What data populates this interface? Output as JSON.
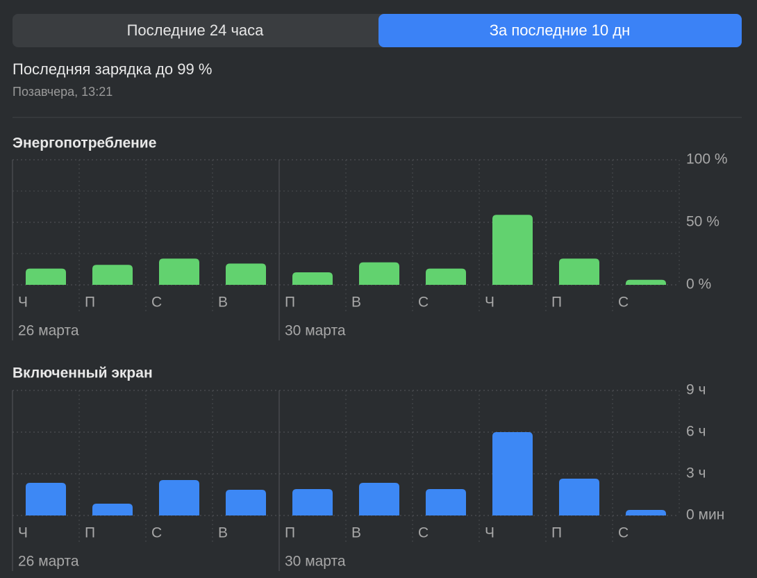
{
  "tabs": [
    "Последние 24 часа",
    "За последние 10 дн"
  ],
  "last_charge": {
    "title": "Последняя зарядка до 99 %",
    "time": "Позавчера, 13:21"
  },
  "chart_data": [
    {
      "type": "bar",
      "title": "Энергопотребление",
      "categories": [
        "Ч",
        "П",
        "С",
        "В",
        "П",
        "В",
        "С",
        "Ч",
        "П",
        "С"
      ],
      "week_labels": [
        "26 марта",
        null,
        null,
        null,
        "30 марта",
        null,
        null,
        null,
        null,
        null
      ],
      "values": [
        13,
        16,
        21,
        17,
        10,
        18,
        13,
        56,
        21,
        4
      ],
      "color": "#62d26f",
      "ylim": [
        0,
        100
      ],
      "yticks": [
        {
          "value": 0,
          "label": "0 %"
        },
        {
          "value": 50,
          "label": "50 %"
        },
        {
          "value": 100,
          "label": "100 %"
        }
      ],
      "minor_yticks": [
        25,
        75
      ],
      "grid": true
    },
    {
      "type": "bar",
      "title": "Включенный экран",
      "categories": [
        "Ч",
        "П",
        "С",
        "В",
        "П",
        "В",
        "С",
        "Ч",
        "П",
        "С"
      ],
      "week_labels": [
        "26 марта",
        null,
        null,
        null,
        "30 марта",
        null,
        null,
        null,
        null,
        null
      ],
      "values": [
        2.35,
        0.85,
        2.55,
        1.85,
        1.9,
        2.35,
        1.9,
        6.0,
        2.65,
        0.4
      ],
      "color": "#3d88f5",
      "ylim": [
        0,
        9
      ],
      "yticks": [
        {
          "value": 0,
          "label": "0 мин"
        },
        {
          "value": 3,
          "label": "3 ч"
        },
        {
          "value": 6,
          "label": "6 ч"
        },
        {
          "value": 9,
          "label": "9 ч"
        }
      ],
      "minor_yticks": [],
      "grid": true
    }
  ]
}
